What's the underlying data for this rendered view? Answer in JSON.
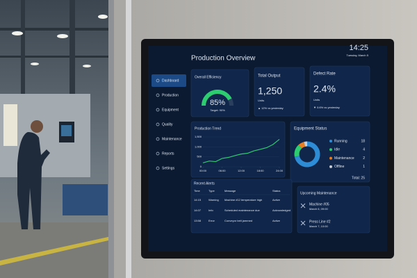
{
  "header": {
    "title": "Production Overview",
    "time": "14:25",
    "date": "Tuesday, March 5"
  },
  "sidebar": {
    "items": [
      "Dashboard",
      "Production",
      "Equipment",
      "Quality",
      "Maintenance",
      "Reports",
      "Settings"
    ],
    "active": 0
  },
  "efficiency": {
    "type": "gauge",
    "title": "Overall Efficiency",
    "value": 85,
    "value_label": "85%",
    "range": [
      0,
      100
    ],
    "target_label": "Target: 90%",
    "color": "#2ecc71"
  },
  "output": {
    "title": "Total Output",
    "value": "1,250",
    "unit": "Units",
    "change": "▲ 12% vs yesterday"
  },
  "defect": {
    "title": "Defect Rate",
    "value": "2.4%",
    "unit": "Units",
    "change": "▼ 0.6% vs yesterday"
  },
  "trend": {
    "type": "line",
    "title": "Production Trend",
    "x": [
      0,
      2,
      4,
      6,
      8,
      10,
      12,
      14,
      16,
      18,
      20,
      22,
      24
    ],
    "values": [
      200,
      290,
      260,
      420,
      470,
      560,
      640,
      680,
      800,
      880,
      960,
      1120,
      1380
    ],
    "color": "#2ecc71",
    "xlim": [
      0,
      24
    ],
    "xticks": [
      {
        "value": 0,
        "label": "00:00"
      },
      {
        "value": 6,
        "label": "06:00"
      },
      {
        "value": 12,
        "label": "12:00"
      },
      {
        "value": 18,
        "label": "18:00"
      },
      {
        "value": 24,
        "label": "24:00"
      }
    ],
    "ylim": [
      0,
      1500
    ],
    "yticks": [
      0,
      500,
      {
        "value": 1000,
        "label": "1,000"
      },
      {
        "value": 1500,
        "label": "1,500"
      }
    ]
  },
  "equipment": {
    "type": "pie",
    "title": "Equipment Status",
    "categories": [
      "Running",
      "Idle",
      "Maintenance",
      "Offline"
    ],
    "values": [
      18,
      4,
      2,
      1
    ],
    "colors": [
      "#2e8bd6",
      "#2ecc71",
      "#e67e22",
      "#c9ced6"
    ],
    "total_label": "Total: 25"
  },
  "alerts": {
    "title": "Recent Alerts",
    "columns": [
      "Time",
      "Type",
      "Message",
      "Status"
    ],
    "rows": [
      [
        "14:15",
        "Warning",
        "Machine #12 temperature high",
        "Active"
      ],
      [
        "14:07",
        "Info",
        "Scheduled maintenance due",
        "Acknowledged"
      ],
      [
        "13:58",
        "Error",
        "Conveyor belt jammed",
        "Active"
      ]
    ],
    "status_colors": [
      "#e67e22",
      "#2ecc71",
      "#e67e22"
    ]
  },
  "maintenance": {
    "title": "Upcoming Maintenance",
    "items": [
      {
        "name": "Machine #05",
        "date": "March 6, 09:00"
      },
      {
        "name": "Press Line #2",
        "date": "March 7, 10:00"
      }
    ]
  }
}
